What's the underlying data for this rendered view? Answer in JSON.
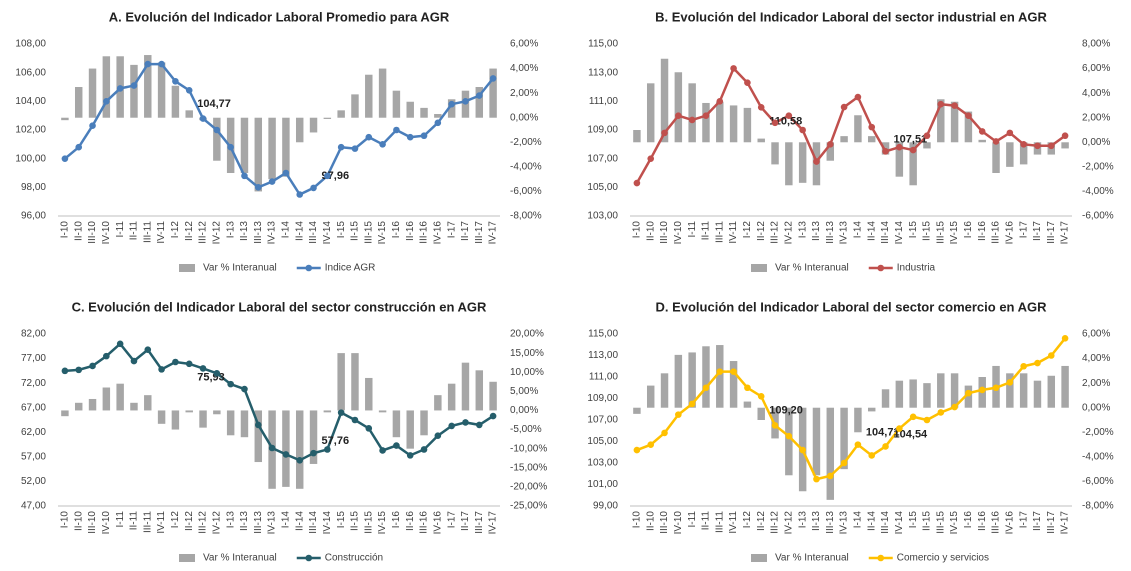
{
  "chart_data": [
    {
      "type": "bar_line",
      "title": "A. Evolución del Indicador Laboral Promedio para AGR",
      "categories": [
        "I-10",
        "II-10",
        "III-10",
        "IV-10",
        "I-11",
        "II-11",
        "III-11",
        "IV-11",
        "I-12",
        "II-12",
        "III-12",
        "IV-12",
        "I-13",
        "II-13",
        "III-13",
        "IV-13",
        "I-14",
        "II-14",
        "III-14",
        "IV-14",
        "I-15",
        "II-15",
        "III-15",
        "IV-15",
        "I-16",
        "II-16",
        "III-16",
        "IV-16",
        "I-17",
        "II-17",
        "III-17",
        "IV-17"
      ],
      "series": [
        {
          "name": "Var % Interanual",
          "type": "bar",
          "axis": "y2",
          "color": "#a6a6a6",
          "values": [
            -0.2,
            2.5,
            4.0,
            5.0,
            5.0,
            4.3,
            5.1,
            4.5,
            2.6,
            0.6,
            -0.2,
            -3.5,
            -4.5,
            -4.5,
            -6.0,
            -5.0,
            -4.8,
            -2.0,
            -1.2,
            -0.1,
            0.6,
            1.9,
            3.5,
            4.0,
            2.2,
            1.3,
            0.8,
            0.3,
            1.5,
            2.2,
            2.5,
            4.0
          ]
        },
        {
          "name": "Indice AGR",
          "type": "line",
          "axis": "y",
          "color": "#4a7ebb",
          "values": [
            100.0,
            100.8,
            102.3,
            104.0,
            104.9,
            105.1,
            106.6,
            106.6,
            105.4,
            104.77,
            102.8,
            102.0,
            100.8,
            98.8,
            98.0,
            98.4,
            99.0,
            97.5,
            97.96,
            98.8,
            100.8,
            100.7,
            101.5,
            101.0,
            102.0,
            101.5,
            101.6,
            102.5,
            103.8,
            104.0,
            104.4,
            105.6
          ],
          "value_labels": [
            null,
            null,
            null,
            null,
            null,
            null,
            null,
            null,
            null,
            "104,77",
            null,
            null,
            null,
            null,
            null,
            null,
            null,
            null,
            "97,96",
            null,
            null,
            null,
            null,
            null,
            null,
            null,
            null,
            null,
            null,
            null,
            null,
            null
          ]
        }
      ],
      "ylim": [
        96,
        108
      ],
      "yticks": [
        {
          "value": 96,
          "label": "96,00"
        },
        {
          "value": 98,
          "label": "98,00"
        },
        {
          "value": 100,
          "label": "100,00"
        },
        {
          "value": 102,
          "label": "102,00"
        },
        {
          "value": 104,
          "label": "104,00"
        },
        {
          "value": 106,
          "label": "106,00"
        },
        {
          "value": 108,
          "label": "108,00"
        }
      ],
      "y2lim": [
        -8,
        6
      ],
      "y2ticks": [
        {
          "value": -8,
          "label": "-8,00%"
        },
        {
          "value": -6,
          "label": "-6,00%"
        },
        {
          "value": -4,
          "label": "-4,00%"
        },
        {
          "value": -2,
          "label": "-2,00%"
        },
        {
          "value": 0,
          "label": "0,00%"
        },
        {
          "value": 2,
          "label": "2,00%"
        },
        {
          "value": 4,
          "label": "4,00%"
        },
        {
          "value": 6,
          "label": "6,00%"
        }
      ],
      "grid": false,
      "legend": "bottom"
    },
    {
      "type": "bar_line",
      "title": "B. Evolución del Indicador Laboral del sector industrial en AGR",
      "categories": [
        "I-10",
        "II-10",
        "III-10",
        "IV-10",
        "I-11",
        "II-11",
        "III-11",
        "IV-11",
        "I-12",
        "II-12",
        "III-12",
        "IV-12",
        "I-13",
        "II-13",
        "III-13",
        "IV-13",
        "I-14",
        "II-14",
        "III-14",
        "IV-14",
        "I-15",
        "II-15",
        "III-15",
        "IV-15",
        "I-16",
        "II-16",
        "III-16",
        "IV-16",
        "I-17",
        "II-17",
        "III-17",
        "IV-17"
      ],
      "series": [
        {
          "name": "Var % Interanual",
          "type": "bar",
          "axis": "y2",
          "color": "#a6a6a6",
          "values": [
            1.0,
            4.8,
            6.8,
            5.7,
            4.8,
            3.2,
            3.3,
            3.0,
            2.8,
            0.3,
            -1.8,
            -3.5,
            -3.3,
            -3.5,
            -1.5,
            0.5,
            2.2,
            0.5,
            -1.0,
            -2.8,
            -3.5,
            -0.5,
            3.5,
            3.3,
            2.5,
            0.2,
            -2.5,
            -2.0,
            -1.8,
            -1.0,
            -1.0,
            -0.5
          ]
        },
        {
          "name": "Industria",
          "type": "line",
          "axis": "y",
          "color": "#c0504d",
          "values": [
            105.3,
            107.0,
            108.8,
            110.0,
            109.7,
            110.0,
            111.0,
            113.3,
            112.3,
            110.58,
            109.5,
            110.0,
            109.0,
            106.8,
            108.0,
            110.6,
            111.3,
            109.2,
            107.51,
            107.8,
            107.6,
            108.6,
            110.8,
            110.7,
            110.0,
            108.9,
            108.2,
            108.8,
            108.0,
            107.9,
            107.9,
            108.6
          ],
          "value_labels": [
            null,
            null,
            null,
            null,
            null,
            null,
            null,
            null,
            null,
            "110,58",
            null,
            null,
            null,
            null,
            null,
            null,
            null,
            null,
            "107,51",
            null,
            null,
            null,
            null,
            null,
            null,
            null,
            null,
            null,
            null,
            null,
            null,
            null
          ]
        }
      ],
      "ylim": [
        103,
        115
      ],
      "yticks": [
        {
          "value": 103,
          "label": "103,00"
        },
        {
          "value": 105,
          "label": "105,00"
        },
        {
          "value": 107,
          "label": "107,00"
        },
        {
          "value": 109,
          "label": "109,00"
        },
        {
          "value": 111,
          "label": "111,00"
        },
        {
          "value": 113,
          "label": "113,00"
        },
        {
          "value": 115,
          "label": "115,00"
        }
      ],
      "y2lim": [
        -6,
        8
      ],
      "y2ticks": [
        {
          "value": -6,
          "label": "-6,00%"
        },
        {
          "value": -4,
          "label": "-4,00%"
        },
        {
          "value": -2,
          "label": "-2,00%"
        },
        {
          "value": 0,
          "label": "0,00%"
        },
        {
          "value": 2,
          "label": "2,00%"
        },
        {
          "value": 4,
          "label": "4,00%"
        },
        {
          "value": 6,
          "label": "6,00%"
        },
        {
          "value": 8,
          "label": "8,00%"
        }
      ],
      "grid": false,
      "legend": "bottom"
    },
    {
      "type": "bar_line",
      "title": "C. Evolución del Indicador Laboral del sector construcción en AGR",
      "categories": [
        "I-10",
        "II-10",
        "III-10",
        "IV-10",
        "I-11",
        "II-11",
        "III-11",
        "IV-11",
        "I-12",
        "II-12",
        "III-12",
        "IV-12",
        "I-13",
        "II-13",
        "III-13",
        "IV-13",
        "I-14",
        "II-14",
        "III-14",
        "IV-14",
        "I-15",
        "II-15",
        "III-15",
        "IV-15",
        "I-16",
        "II-16",
        "III-16",
        "IV-16",
        "I-17",
        "II-17",
        "III-17",
        "IV-17"
      ],
      "series": [
        {
          "name": "Var % Interanual",
          "type": "bar",
          "axis": "y2",
          "color": "#a6a6a6",
          "values": [
            -1.5,
            2.0,
            3.0,
            6.0,
            7.0,
            2.0,
            4.0,
            -3.5,
            -5.0,
            -0.5,
            -4.5,
            -1.0,
            -6.5,
            -7.0,
            -13.5,
            -20.5,
            -20.0,
            -20.5,
            -14.0,
            -0.5,
            15.0,
            15.0,
            8.5,
            -0.5,
            -7.0,
            -10.0,
            -6.5,
            4.0,
            7.0,
            12.5,
            10.5,
            7.5
          ]
        },
        {
          "name": "Construcción",
          "type": "line",
          "axis": "y",
          "color": "#255e6b",
          "values": [
            74.5,
            74.7,
            75.5,
            77.5,
            80.0,
            76.5,
            78.8,
            74.8,
            76.3,
            75.93,
            75.0,
            74.0,
            71.8,
            70.8,
            63.5,
            58.8,
            57.5,
            56.3,
            57.76,
            58.5,
            66.0,
            64.5,
            62.8,
            58.3,
            59.3,
            57.3,
            58.5,
            61.3,
            63.3,
            64.0,
            63.5,
            65.3
          ],
          "value_labels": [
            null,
            null,
            null,
            null,
            null,
            null,
            null,
            null,
            null,
            "75,93",
            null,
            null,
            null,
            null,
            null,
            null,
            null,
            null,
            "57,76",
            null,
            null,
            null,
            null,
            null,
            null,
            null,
            null,
            null,
            null,
            null,
            null,
            null
          ]
        }
      ],
      "ylim": [
        47,
        82
      ],
      "yticks": [
        {
          "value": 47,
          "label": "47,00"
        },
        {
          "value": 52,
          "label": "52,00"
        },
        {
          "value": 57,
          "label": "57,00"
        },
        {
          "value": 62,
          "label": "62,00"
        },
        {
          "value": 67,
          "label": "67,00"
        },
        {
          "value": 72,
          "label": "72,00"
        },
        {
          "value": 77,
          "label": "77,00"
        },
        {
          "value": 82,
          "label": "82,00"
        }
      ],
      "y2lim": [
        -25,
        20
      ],
      "y2ticks": [
        {
          "value": -25,
          "label": "-25,00%"
        },
        {
          "value": -20,
          "label": "-20,00%"
        },
        {
          "value": -15,
          "label": "-15,00%"
        },
        {
          "value": -10,
          "label": "-10,00%"
        },
        {
          "value": -5,
          "label": "-5,00%"
        },
        {
          "value": 0,
          "label": "0,00%"
        },
        {
          "value": 5,
          "label": "5,00%"
        },
        {
          "value": 10,
          "label": "10,00%"
        },
        {
          "value": 15,
          "label": "15,00%"
        },
        {
          "value": 20,
          "label": "20,00%"
        }
      ],
      "grid": false,
      "legend": "bottom"
    },
    {
      "type": "bar_line",
      "title": "D. Evolución del Indicador Laboral del sector comercio en AGR",
      "categories": [
        "I-10",
        "II-10",
        "III-10",
        "IV-10",
        "I-11",
        "II-11",
        "III-11",
        "IV-11",
        "I-12",
        "II-12",
        "III-12",
        "IV-12",
        "I-13",
        "II-13",
        "III-13",
        "IV-13",
        "I-14",
        "II-14",
        "III-14",
        "IV-14",
        "I-15",
        "II-15",
        "III-15",
        "IV-15",
        "I-16",
        "II-16",
        "III-16",
        "IV-16",
        "I-17",
        "II-17",
        "III-17",
        "IV-17"
      ],
      "series": [
        {
          "name": "Var % Interanual",
          "type": "bar",
          "axis": "y2",
          "color": "#a6a6a6",
          "values": [
            -0.5,
            1.8,
            2.8,
            4.3,
            4.5,
            5.0,
            5.1,
            3.8,
            0.5,
            -1.0,
            -2.5,
            -5.5,
            -6.8,
            -5.5,
            -7.5,
            -5.0,
            -2.0,
            -0.3,
            1.5,
            2.2,
            2.3,
            2.0,
            2.8,
            2.8,
            1.8,
            2.5,
            3.4,
            2.8,
            2.8,
            2.2,
            2.6,
            3.4
          ]
        },
        {
          "name": "Comercio y servicios",
          "type": "line",
          "axis": "y",
          "color": "#ffc000",
          "values": [
            104.2,
            104.7,
            105.8,
            107.5,
            108.5,
            110.0,
            111.5,
            111.5,
            110.0,
            109.2,
            106.5,
            105.5,
            104.2,
            101.5,
            101.8,
            103.0,
            104.71,
            103.7,
            104.54,
            106.2,
            107.3,
            107.0,
            107.7,
            108.2,
            109.5,
            109.8,
            110.0,
            110.5,
            112.0,
            112.3,
            113.0,
            114.6
          ],
          "value_labels": [
            null,
            null,
            null,
            null,
            null,
            null,
            null,
            null,
            null,
            "109,20",
            null,
            null,
            null,
            null,
            null,
            null,
            "104,71",
            null,
            "104,54",
            null,
            null,
            null,
            null,
            null,
            null,
            null,
            null,
            null,
            null,
            null,
            null,
            null
          ]
        }
      ],
      "ylim": [
        99,
        115
      ],
      "yticks": [
        {
          "value": 99,
          "label": "99,00"
        },
        {
          "value": 101,
          "label": "101,00"
        },
        {
          "value": 103,
          "label": "103,00"
        },
        {
          "value": 105,
          "label": "105,00"
        },
        {
          "value": 107,
          "label": "107,00"
        },
        {
          "value": 109,
          "label": "109,00"
        },
        {
          "value": 111,
          "label": "111,00"
        },
        {
          "value": 113,
          "label": "113,00"
        },
        {
          "value": 115,
          "label": "115,00"
        }
      ],
      "y2lim": [
        -8,
        6
      ],
      "y2ticks": [
        {
          "value": -8,
          "label": "-8,00%"
        },
        {
          "value": -6,
          "label": "-6,00%"
        },
        {
          "value": -4,
          "label": "-4,00%"
        },
        {
          "value": -2,
          "label": "-2,00%"
        },
        {
          "value": 0,
          "label": "0,00%"
        },
        {
          "value": 2,
          "label": "2,00%"
        },
        {
          "value": 4,
          "label": "4,00%"
        },
        {
          "value": 6,
          "label": "6,00%"
        }
      ],
      "grid": false,
      "legend": "bottom"
    }
  ]
}
